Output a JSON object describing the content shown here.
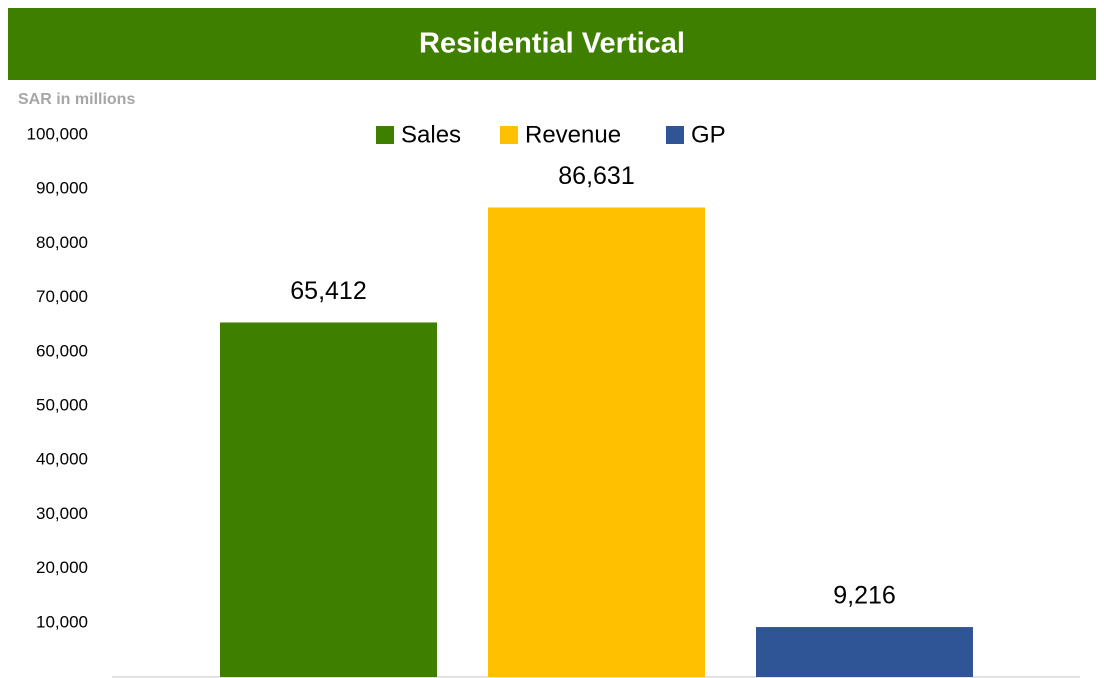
{
  "chart_data": {
    "type": "bar",
    "title": "Residential Vertical",
    "y_axis_label": "SAR in millions",
    "categories": [
      null
    ],
    "series": [
      {
        "name": "Sales",
        "color": "#3f7f00",
        "values": [
          65412
        ],
        "value_labels": [
          "65,412"
        ]
      },
      {
        "name": "Revenue",
        "color": "#ffc000",
        "values": [
          86631
        ],
        "value_labels": [
          "86,631"
        ]
      },
      {
        "name": "GP",
        "color": "#2f5597",
        "values": [
          9216
        ],
        "value_labels": [
          "9,216"
        ]
      }
    ],
    "ylim": [
      0,
      100000
    ],
    "yticks": [
      {
        "value": 10000,
        "label": "10,000"
      },
      {
        "value": 20000,
        "label": "20,000"
      },
      {
        "value": 30000,
        "label": "30,000"
      },
      {
        "value": 40000,
        "label": "40,000"
      },
      {
        "value": 50000,
        "label": "50,000"
      },
      {
        "value": 60000,
        "label": "60,000"
      },
      {
        "value": 70000,
        "label": "70,000"
      },
      {
        "value": 80000,
        "label": "80,000"
      },
      {
        "value": 90000,
        "label": "90,000"
      },
      {
        "value": 100000,
        "label": "100,000"
      }
    ],
    "grid": false,
    "legend": "top"
  }
}
